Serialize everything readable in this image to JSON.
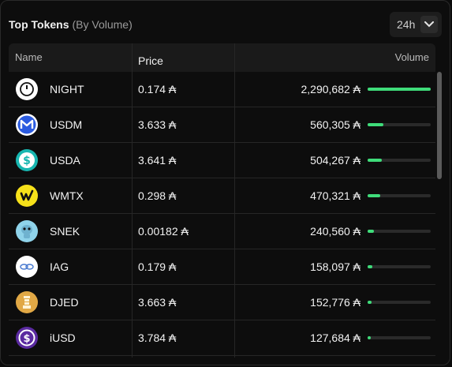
{
  "header": {
    "title": "Top Tokens",
    "subtitle": "(By Volume)"
  },
  "period": {
    "value": "24h",
    "icon": "chevron-down-icon"
  },
  "columns": {
    "name": "Name",
    "price": "Price",
    "volume": "Volume"
  },
  "tokens": [
    {
      "name": "NIGHT",
      "price": "0.174 ₳",
      "volume": "2,290,682 ₳",
      "share": 1.0,
      "icon": "night-token-icon",
      "color": "#ffffff"
    },
    {
      "name": "USDM",
      "price": "3.633 ₳",
      "volume": "560,305 ₳",
      "share": 0.245,
      "icon": "usdm-token-icon",
      "color": "#2b5be0"
    },
    {
      "name": "USDA",
      "price": "3.641 ₳",
      "volume": "504,267 ₳",
      "share": 0.22,
      "icon": "usda-token-icon",
      "color": "#18b6b0"
    },
    {
      "name": "WMTX",
      "price": "0.298 ₳",
      "volume": "470,321 ₳",
      "share": 0.205,
      "icon": "wmtx-token-icon",
      "color": "#f6e11a"
    },
    {
      "name": "SNEK",
      "price": "0.00182 ₳",
      "volume": "240,560 ₳",
      "share": 0.105,
      "icon": "snek-token-icon",
      "color": "#8fd3ea"
    },
    {
      "name": "IAG",
      "price": "0.179 ₳",
      "volume": "158,097 ₳",
      "share": 0.07,
      "icon": "iag-token-icon",
      "color": "#ffffff"
    },
    {
      "name": "DJED",
      "price": "3.663 ₳",
      "volume": "152,776 ₳",
      "share": 0.067,
      "icon": "djed-token-icon",
      "color": "#e1a845"
    },
    {
      "name": "iUSD",
      "price": "3.784 ₳",
      "volume": "127,684 ₳",
      "share": 0.056,
      "icon": "iusd-token-icon",
      "color": "#5a2aa0"
    }
  ],
  "colors": {
    "accent": "#3fdc7a",
    "background": "#0d0d0d",
    "header": "#1a1a1a"
  }
}
